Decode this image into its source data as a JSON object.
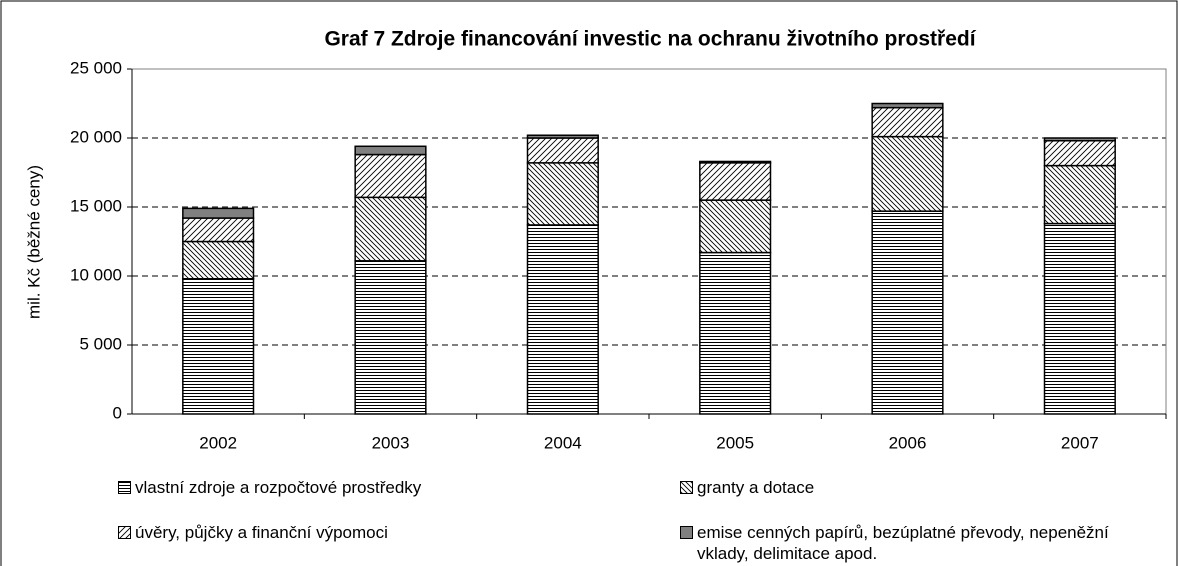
{
  "chart_data": {
    "type": "stacked-bar",
    "title": "Graf 7 Zdroje financování investic na ochranu životního prostředí",
    "y_label": "mil. Kč (běžné ceny)",
    "categories": [
      "2002",
      "2003",
      "2004",
      "2005",
      "2006",
      "2007"
    ],
    "series": [
      {
        "name": "vlastní zdroje a rozpočtové prostředky",
        "color": "#ffffff",
        "pattern": "horizontal",
        "values": [
          9800,
          11100,
          13700,
          11700,
          14700,
          13800
        ]
      },
      {
        "name": "granty a dotace",
        "color": "#ffffff",
        "pattern": "dense-diagonal",
        "values": [
          2700,
          4600,
          4500,
          3800,
          5400,
          4200
        ]
      },
      {
        "name": "úvěry, půjčky a finanční výpomoci",
        "color": "#ffffff",
        "pattern": "diagonal",
        "values": [
          1700,
          3100,
          1800,
          2700,
          2100,
          1800
        ]
      },
      {
        "name": "emise cenných papírů, bezúplatné převody, nepeněžní vklady, delimitace apod.",
        "color": "#808080",
        "pattern": "solid",
        "values": [
          700,
          600,
          200,
          100,
          300,
          200
        ]
      }
    ],
    "ylim": [
      0,
      25000
    ],
    "yticks": [
      0,
      {
        "value": 5000,
        "label": "5 000"
      },
      {
        "value": 10000,
        "label": "10 000"
      },
      {
        "value": 15000,
        "label": "15 000"
      },
      {
        "value": 20000,
        "label": "20 000"
      },
      {
        "value": 25000,
        "label": "25 000"
      }
    ],
    "grid": true
  }
}
